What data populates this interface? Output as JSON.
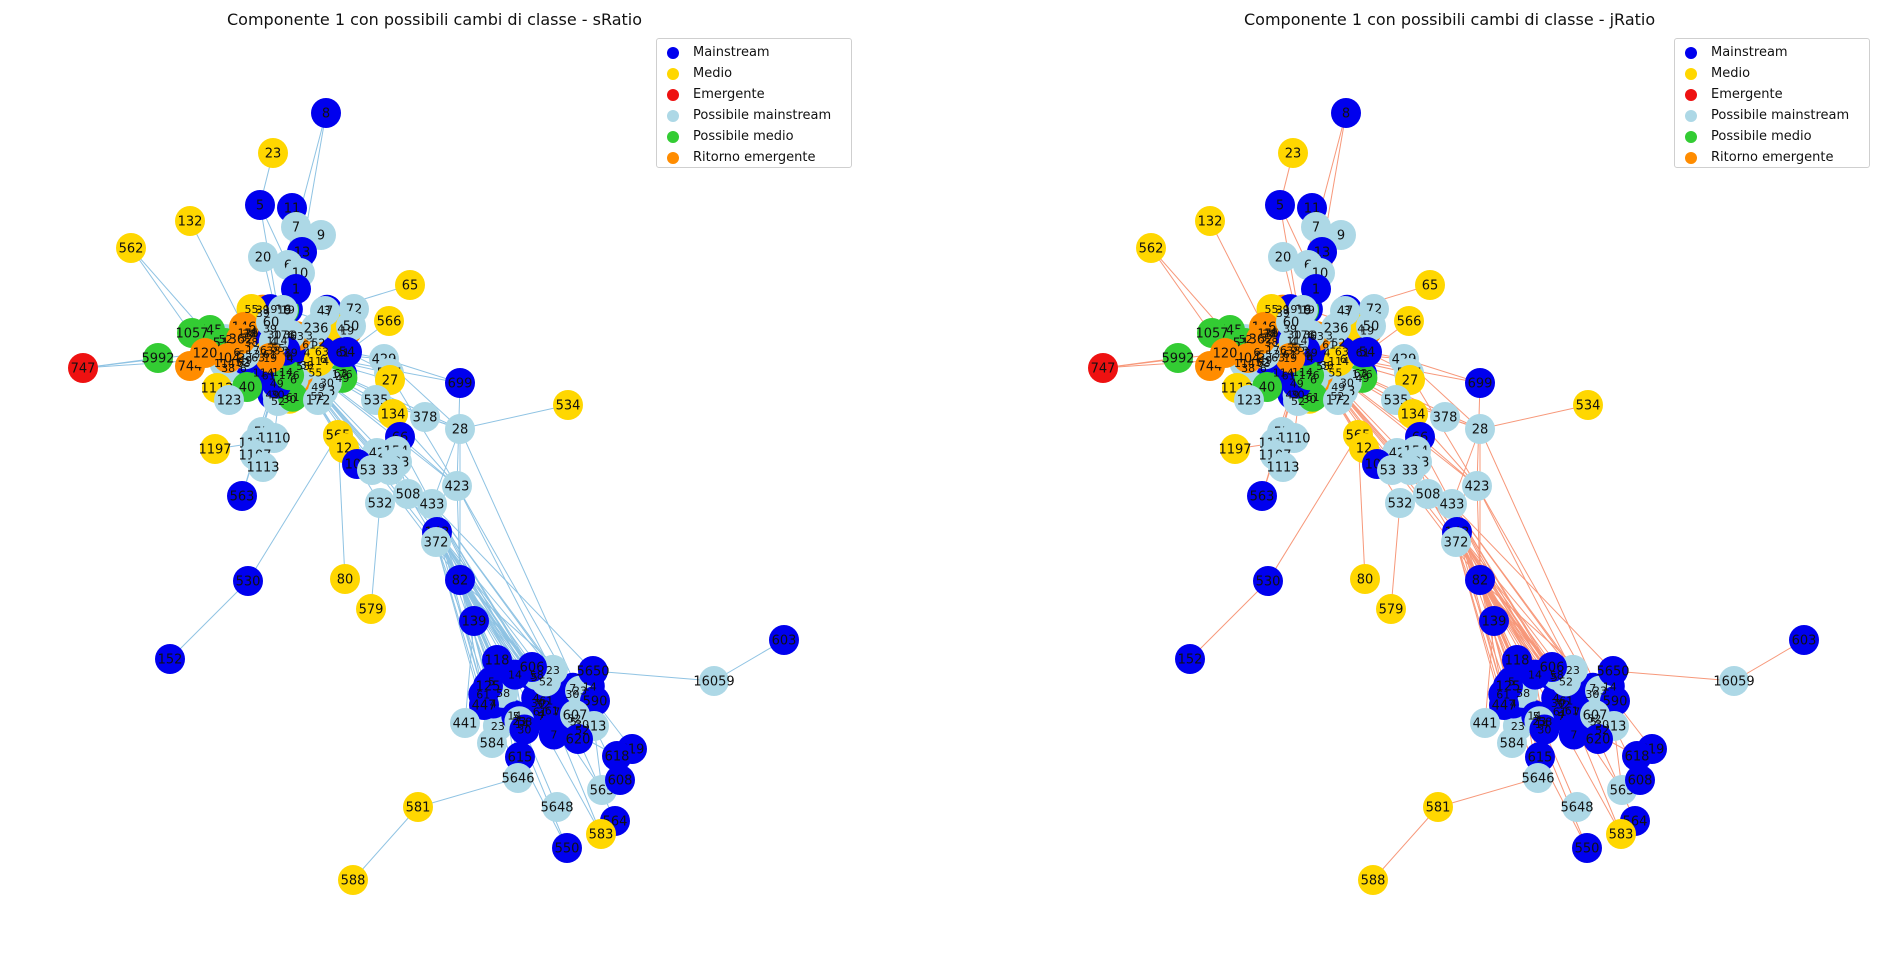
{
  "colors": {
    "Mainstream": "#0000ee",
    "Medio": "#ffd700",
    "Emergente": "#ee1111",
    "Possibile mainstream": "#add8e6",
    "Possibile medio": "#33cc33",
    "Ritorno emergente": "#ff8c00",
    "edge_sratio": "#8fc3e3",
    "edge_jratio": "#f7987a"
  },
  "legend": [
    "Mainstream",
    "Medio",
    "Emergente",
    "Possibile mainstream",
    "Possibile medio",
    "Ritorno emergente"
  ],
  "panels": [
    {
      "title": "Componente 1 con possibili cambi di classe - sRatio",
      "edge_color_key": "edge_sratio"
    },
    {
      "title": "Componente 1 con possibili cambi di classe - jRatio",
      "edge_color_key": "edge_jratio"
    }
  ],
  "nodes": [
    {
      "id": "8",
      "c": "Mainstream"
    },
    {
      "id": "23",
      "c": "Medio"
    },
    {
      "id": "5",
      "c": "Mainstream"
    },
    {
      "id": "11",
      "c": "Mainstream"
    },
    {
      "id": "7",
      "c": "Possibile mainstream"
    },
    {
      "id": "9",
      "c": "Possibile mainstream"
    },
    {
      "id": "132",
      "c": "Medio"
    },
    {
      "id": "562",
      "c": "Medio"
    },
    {
      "id": "20",
      "c": "Possibile mainstream"
    },
    {
      "id": "13",
      "c": "Mainstream"
    },
    {
      "id": "6",
      "c": "Possibile mainstream"
    },
    {
      "id": "10",
      "c": "Possibile mainstream"
    },
    {
      "id": "1",
      "c": "Mainstream"
    },
    {
      "id": "65",
      "c": "Medio"
    },
    {
      "id": "16",
      "c": "Possibile mainstream"
    },
    {
      "id": "47",
      "c": "Possibile mainstream"
    },
    {
      "id": "72",
      "c": "Possibile mainstream"
    },
    {
      "id": "50",
      "c": "Possibile mainstream"
    },
    {
      "id": "566",
      "c": "Medio"
    },
    {
      "id": "146",
      "c": "Ritorno emergente"
    },
    {
      "id": "60",
      "c": "Possibile mainstream"
    },
    {
      "id": "236",
      "c": "Possibile mainstream"
    },
    {
      "id": "745",
      "c": "Possibile medio"
    },
    {
      "id": "1057",
      "c": "Possibile medio"
    },
    {
      "id": "518",
      "c": "Possibile medio"
    },
    {
      "id": "362",
      "c": "Ritorno emergente"
    },
    {
      "id": "747",
      "c": "Emergente"
    },
    {
      "id": "5992",
      "c": "Possibile medio"
    },
    {
      "id": "744",
      "c": "Ritorno emergente"
    },
    {
      "id": "404",
      "c": "Ritorno emergente"
    },
    {
      "id": "120",
      "c": "Ritorno emergente"
    },
    {
      "id": "54",
      "c": "Mainstream"
    },
    {
      "id": "429",
      "c": "Possibile mainstream"
    },
    {
      "id": "537",
      "c": "Possibile mainstream"
    },
    {
      "id": "27",
      "c": "Medio"
    },
    {
      "id": "699",
      "c": "Mainstream"
    },
    {
      "id": "534",
      "c": "Medio"
    },
    {
      "id": "1112",
      "c": "Medio"
    },
    {
      "id": "40",
      "c": "Possibile medio"
    },
    {
      "id": "123",
      "c": "Possibile mainstream"
    },
    {
      "id": "153",
      "c": "Possibile mainstream"
    },
    {
      "id": "535",
      "c": "Possibile mainstream"
    },
    {
      "id": "134",
      "c": "Medio"
    },
    {
      "id": "378",
      "c": "Possibile mainstream"
    },
    {
      "id": "28",
      "c": "Possibile mainstream"
    },
    {
      "id": "565",
      "c": "Medio"
    },
    {
      "id": "172",
      "c": "Possibile mainstream"
    },
    {
      "id": "57",
      "c": "Possibile mainstream"
    },
    {
      "id": "1197",
      "c": "Medio"
    },
    {
      "id": "1114",
      "c": "Possibile mainstream"
    },
    {
      "id": "1110",
      "c": "Possibile mainstream"
    },
    {
      "id": "1107",
      "c": "Possibile mainstream"
    },
    {
      "id": "1113",
      "c": "Possibile mainstream"
    },
    {
      "id": "12",
      "c": "Medio"
    },
    {
      "id": "66",
      "c": "Mainstream"
    },
    {
      "id": "42",
      "c": "Possibile mainstream"
    },
    {
      "id": "154",
      "c": "Possibile mainstream"
    },
    {
      "id": "107",
      "c": "Mainstream"
    },
    {
      "id": "133",
      "c": "Possibile mainstream"
    },
    {
      "id": "538",
      "c": "Possibile mainstream"
    },
    {
      "id": "33",
      "c": "Possibile mainstream"
    },
    {
      "id": "423",
      "c": "Possibile mainstream"
    },
    {
      "id": "508",
      "c": "Possibile mainstream"
    },
    {
      "id": "433",
      "c": "Possibile mainstream"
    },
    {
      "id": "532",
      "c": "Possibile mainstream"
    },
    {
      "id": "563",
      "c": "Mainstream"
    },
    {
      "id": "143",
      "c": "Mainstream"
    },
    {
      "id": "372",
      "c": "Possibile mainstream"
    },
    {
      "id": "530",
      "c": "Mainstream"
    },
    {
      "id": "80",
      "c": "Medio"
    },
    {
      "id": "82",
      "c": "Mainstream"
    },
    {
      "id": "579",
      "c": "Medio"
    },
    {
      "id": "152",
      "c": "Mainstream"
    },
    {
      "id": "139",
      "c": "Mainstream"
    },
    {
      "id": "603",
      "c": "Mainstream"
    },
    {
      "id": "16059",
      "c": "Possibile mainstream"
    },
    {
      "id": "118",
      "c": "Mainstream"
    },
    {
      "id": "606",
      "c": "Mainstream"
    },
    {
      "id": "5650",
      "c": "Mainstream"
    },
    {
      "id": "125",
      "c": "Mainstream"
    },
    {
      "id": "447",
      "c": "Mainstream"
    },
    {
      "id": "590",
      "c": "Mainstream"
    },
    {
      "id": "441",
      "c": "Possibile mainstream"
    },
    {
      "id": "613",
      "c": "Possibile mainstream"
    },
    {
      "id": "607",
      "c": "Possibile mainstream"
    },
    {
      "id": "584",
      "c": "Possibile mainstream"
    },
    {
      "id": "620",
      "c": "Mainstream"
    },
    {
      "id": "615",
      "c": "Mainstream"
    },
    {
      "id": "619",
      "c": "Mainstream"
    },
    {
      "id": "618",
      "c": "Mainstream"
    },
    {
      "id": "5646",
      "c": "Possibile mainstream"
    },
    {
      "id": "5648",
      "c": "Possibile mainstream"
    },
    {
      "id": "565x",
      "c": "Possibile mainstream"
    },
    {
      "id": "608",
      "c": "Mainstream"
    },
    {
      "id": "564",
      "c": "Mainstream"
    },
    {
      "id": "581",
      "c": "Medio"
    },
    {
      "id": "583",
      "c": "Medio"
    },
    {
      "id": "550",
      "c": "Mainstream"
    },
    {
      "id": "588",
      "c": "Medio"
    }
  ]
}
